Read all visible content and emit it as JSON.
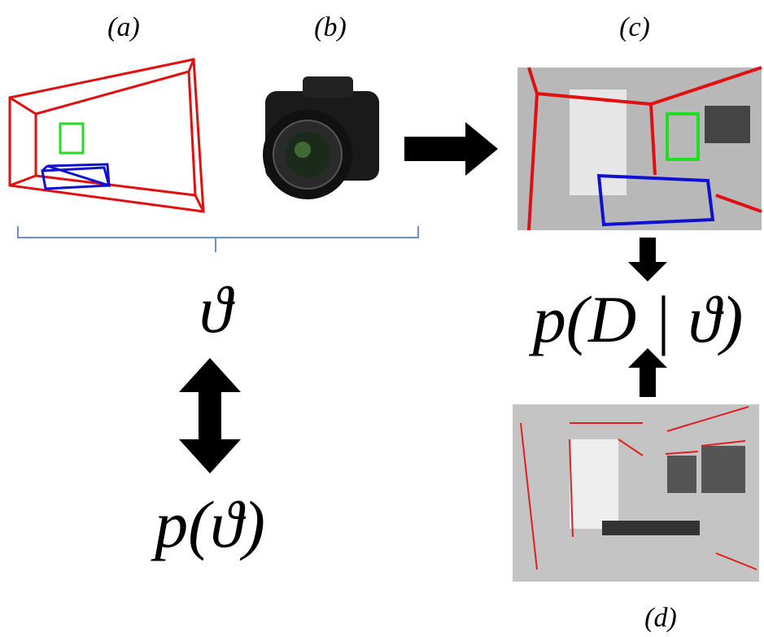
{
  "labels": {
    "a": "(a)",
    "b": "(b)",
    "c": "(c)",
    "d": "(d)"
  },
  "formulas": {
    "theta": "ϑ",
    "prior": "p(ϑ)",
    "likelihood": "p(D | ϑ)"
  }
}
